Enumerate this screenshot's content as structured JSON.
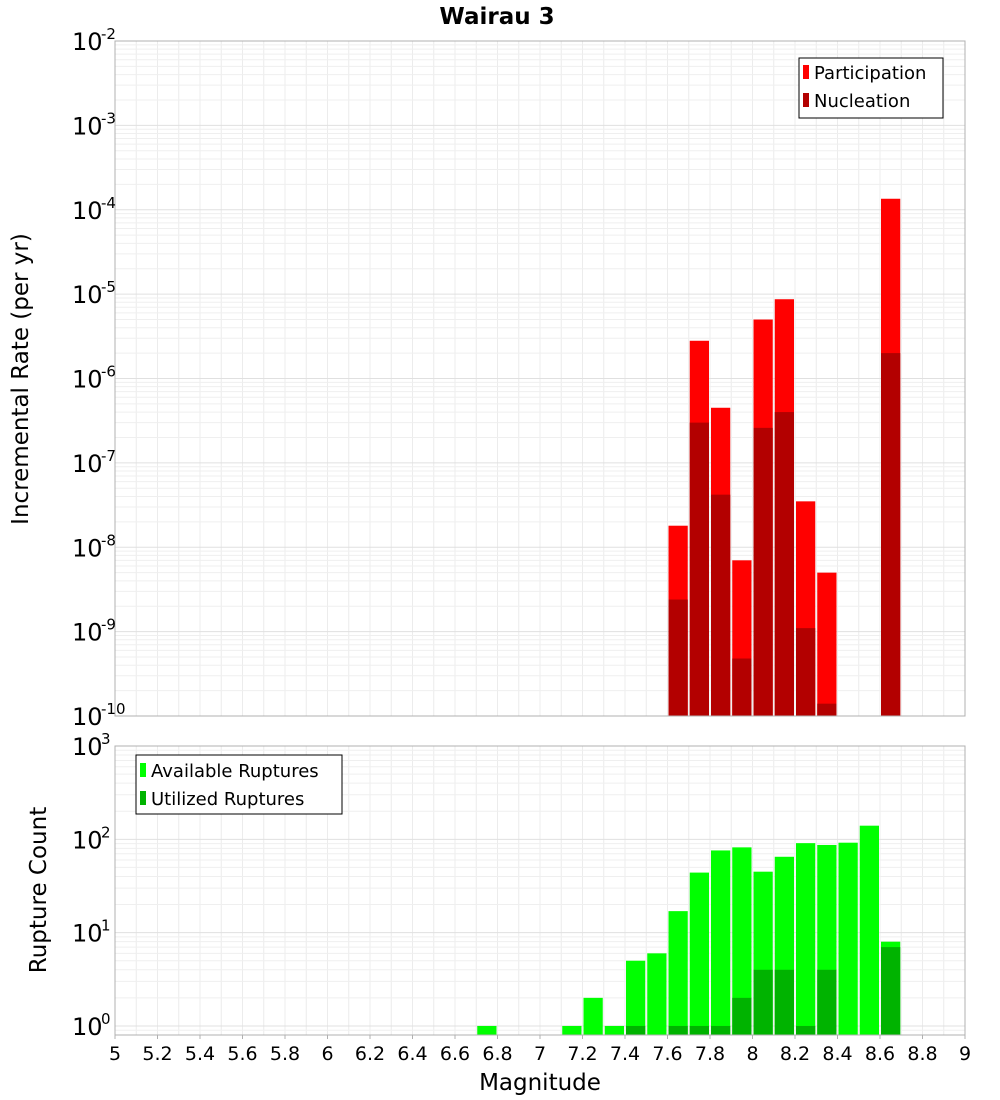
{
  "chart_data": [
    {
      "type": "bar",
      "title": "Wairau 3",
      "xlabel": "",
      "ylabel": "Incremental Rate (per yr)",
      "xlim": [
        5,
        9
      ],
      "ylim": [
        1e-10,
        0.01
      ],
      "yscale": "log",
      "grid": true,
      "legend_position": "top-right",
      "y_ticks": [
        {
          "base": "10",
          "exp": "-10",
          "value": 1e-10
        },
        {
          "base": "10",
          "exp": "-9",
          "value": 1e-09
        },
        {
          "base": "10",
          "exp": "-8",
          "value": 1e-08
        },
        {
          "base": "10",
          "exp": "-7",
          "value": 1e-07
        },
        {
          "base": "10",
          "exp": "-6",
          "value": 1e-06
        },
        {
          "base": "10",
          "exp": "-5",
          "value": 1e-05
        },
        {
          "base": "10",
          "exp": "-4",
          "value": 0.0001
        },
        {
          "base": "10",
          "exp": "-3",
          "value": 0.001
        },
        {
          "base": "10",
          "exp": "-2",
          "value": 0.01
        }
      ],
      "series": [
        {
          "name": "Participation",
          "color": "#ff0000",
          "x": [
            7.65,
            7.75,
            7.85,
            7.95,
            8.05,
            8.15,
            8.25,
            8.35,
            8.65
          ],
          "values": [
            1.8e-08,
            2.8e-06,
            4.5e-07,
            7e-09,
            5e-06,
            8.7e-06,
            3.5e-08,
            5e-09,
            0.000135
          ]
        },
        {
          "name": "Nucleation",
          "color": "#b30000",
          "x": [
            7.65,
            7.75,
            7.85,
            7.95,
            8.05,
            8.15,
            8.25,
            8.35,
            8.65
          ],
          "values": [
            2.4e-09,
            3e-07,
            4.2e-08,
            4.8e-10,
            2.6e-07,
            4e-07,
            1.1e-09,
            1.4e-10,
            2e-06
          ]
        }
      ]
    },
    {
      "type": "bar",
      "title": "",
      "xlabel": "Magnitude",
      "ylabel": "Rupture Count",
      "xlim": [
        5,
        9
      ],
      "ylim": [
        0.8,
        1000
      ],
      "yscale": "log",
      "grid": true,
      "legend_position": "top-left",
      "x_tick_labels": [
        "5",
        "5.2",
        "5.4",
        "5.6",
        "5.8",
        "6",
        "6.2",
        "6.4",
        "6.6",
        "6.8",
        "7",
        "7.2",
        "7.4",
        "7.6",
        "7.8",
        "8",
        "8.2",
        "8.4",
        "8.6",
        "8.8",
        "9"
      ],
      "y_ticks": [
        {
          "base": "10",
          "exp": "0",
          "value": 1
        },
        {
          "base": "10",
          "exp": "1",
          "value": 10
        },
        {
          "base": "10",
          "exp": "2",
          "value": 100
        },
        {
          "base": "10",
          "exp": "3",
          "value": 1000
        }
      ],
      "series": [
        {
          "name": "Available Ruptures",
          "color": "#00ff00",
          "x": [
            6.75,
            7.15,
            7.25,
            7.35,
            7.45,
            7.55,
            7.65,
            7.75,
            7.85,
            7.95,
            8.05,
            8.15,
            8.25,
            8.35,
            8.45,
            8.55,
            8.65
          ],
          "values": [
            1,
            1,
            2,
            1,
            5,
            6,
            17,
            44,
            76,
            82,
            45,
            65,
            91,
            87,
            92,
            140,
            8
          ]
        },
        {
          "name": "Utilized Ruptures",
          "color": "#00b300",
          "x": [
            7.45,
            7.65,
            7.75,
            7.85,
            7.95,
            8.05,
            8.15,
            8.25,
            8.35,
            8.65
          ],
          "values": [
            1,
            1,
            1,
            1,
            2,
            4,
            4,
            1,
            4,
            7
          ]
        }
      ]
    }
  ]
}
